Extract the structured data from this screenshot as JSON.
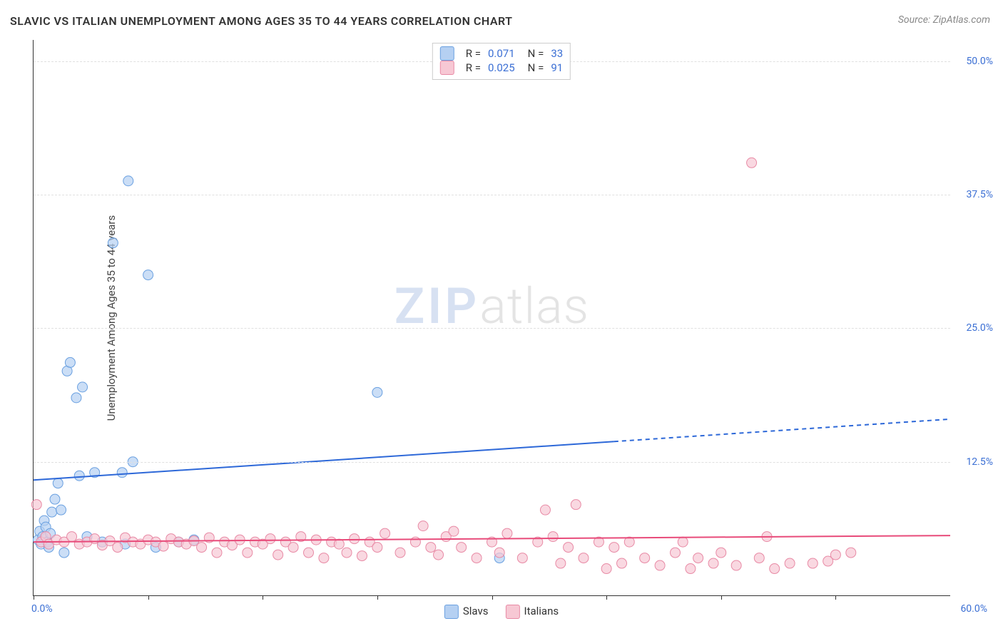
{
  "title": "SLAVIC VS ITALIAN UNEMPLOYMENT AMONG AGES 35 TO 44 YEARS CORRELATION CHART",
  "source": "Source: ZipAtlas.com",
  "watermark_zip": "ZIP",
  "watermark_atlas": "atlas",
  "y_axis_label": "Unemployment Among Ages 35 to 44 years",
  "chart": {
    "type": "scatter",
    "xlim": [
      0,
      60
    ],
    "ylim": [
      0,
      52
    ],
    "x_min_label": "0.0%",
    "x_max_label": "60.0%",
    "y_ticks": [
      12.5,
      25.0,
      37.5,
      50.0
    ],
    "y_tick_labels": [
      "12.5%",
      "25.0%",
      "37.5%",
      "50.0%"
    ],
    "x_tick_positions": [
      0,
      7.5,
      15,
      22.5,
      30,
      37.5,
      45,
      52.5
    ],
    "grid_color": "#e0e0e0",
    "background_color": "#ffffff",
    "series": [
      {
        "name": "Slavs",
        "label": "Slavs",
        "color_fill": "#b5d0f2",
        "color_stroke": "#6aa0e0",
        "marker_radius": 7,
        "r_value": "0.071",
        "n_value": "33",
        "trend": {
          "color": "#2d68d8",
          "width": 2,
          "x1": 0,
          "y1": 10.8,
          "x2_solid": 38,
          "y2_solid": 14.4,
          "x2_dash": 60,
          "y2_dash": 16.5
        },
        "points": [
          [
            0.3,
            5.2
          ],
          [
            0.4,
            6.0
          ],
          [
            0.5,
            4.8
          ],
          [
            0.6,
            5.5
          ],
          [
            0.7,
            7.0
          ],
          [
            0.8,
            6.4
          ],
          [
            0.9,
            5.0
          ],
          [
            1.0,
            4.5
          ],
          [
            1.1,
            5.8
          ],
          [
            1.2,
            7.8
          ],
          [
            1.4,
            9.0
          ],
          [
            1.6,
            10.5
          ],
          [
            1.8,
            8.0
          ],
          [
            2.0,
            4.0
          ],
          [
            2.2,
            21.0
          ],
          [
            2.4,
            21.8
          ],
          [
            2.8,
            18.5
          ],
          [
            3.0,
            11.2
          ],
          [
            3.2,
            19.5
          ],
          [
            3.5,
            5.5
          ],
          [
            4.0,
            11.5
          ],
          [
            4.5,
            5.0
          ],
          [
            5.2,
            33.0
          ],
          [
            5.8,
            11.5
          ],
          [
            6.0,
            4.8
          ],
          [
            6.2,
            38.8
          ],
          [
            6.5,
            12.5
          ],
          [
            7.5,
            30.0
          ],
          [
            8.0,
            4.5
          ],
          [
            9.5,
            5.0
          ],
          [
            10.5,
            5.2
          ],
          [
            22.5,
            19.0
          ],
          [
            30.5,
            3.5
          ]
        ]
      },
      {
        "name": "Italians",
        "label": "Italians",
        "color_fill": "#f7c8d4",
        "color_stroke": "#e88aa5",
        "marker_radius": 7,
        "r_value": "0.025",
        "n_value": "91",
        "trend": {
          "color": "#e84b7a",
          "width": 2,
          "x1": 0,
          "y1": 5.0,
          "x2_solid": 60,
          "y2_solid": 5.6,
          "x2_dash": 60,
          "y2_dash": 5.6
        },
        "points": [
          [
            0.2,
            8.5
          ],
          [
            0.5,
            5.0
          ],
          [
            0.8,
            5.5
          ],
          [
            1.0,
            4.8
          ],
          [
            1.5,
            5.2
          ],
          [
            2.0,
            5.0
          ],
          [
            2.5,
            5.5
          ],
          [
            3.0,
            4.8
          ],
          [
            3.5,
            5.0
          ],
          [
            4.0,
            5.3
          ],
          [
            4.5,
            4.7
          ],
          [
            5.0,
            5.1
          ],
          [
            5.5,
            4.5
          ],
          [
            6.0,
            5.4
          ],
          [
            6.5,
            5.0
          ],
          [
            7.0,
            4.8
          ],
          [
            7.5,
            5.2
          ],
          [
            8.0,
            5.0
          ],
          [
            8.5,
            4.6
          ],
          [
            9.0,
            5.3
          ],
          [
            9.5,
            5.0
          ],
          [
            10.0,
            4.8
          ],
          [
            10.5,
            5.1
          ],
          [
            11.0,
            4.5
          ],
          [
            11.5,
            5.4
          ],
          [
            12.0,
            4.0
          ],
          [
            12.5,
            5.0
          ],
          [
            13.0,
            4.7
          ],
          [
            13.5,
            5.2
          ],
          [
            14.0,
            4.0
          ],
          [
            14.5,
            5.0
          ],
          [
            15.0,
            4.8
          ],
          [
            15.5,
            5.3
          ],
          [
            16.0,
            3.8
          ],
          [
            16.5,
            5.0
          ],
          [
            17.0,
            4.5
          ],
          [
            17.5,
            5.5
          ],
          [
            18.0,
            4.0
          ],
          [
            18.5,
            5.2
          ],
          [
            19.0,
            3.5
          ],
          [
            19.5,
            5.0
          ],
          [
            20.0,
            4.8
          ],
          [
            20.5,
            4.0
          ],
          [
            21.0,
            5.3
          ],
          [
            21.5,
            3.7
          ],
          [
            22.0,
            5.0
          ],
          [
            22.5,
            4.5
          ],
          [
            23.0,
            5.8
          ],
          [
            24.0,
            4.0
          ],
          [
            25.0,
            5.0
          ],
          [
            25.5,
            6.5
          ],
          [
            26.0,
            4.5
          ],
          [
            26.5,
            3.8
          ],
          [
            27.0,
            5.5
          ],
          [
            27.5,
            6.0
          ],
          [
            28.0,
            4.5
          ],
          [
            29.0,
            3.5
          ],
          [
            30.0,
            5.0
          ],
          [
            30.5,
            4.0
          ],
          [
            31.0,
            5.8
          ],
          [
            32.0,
            3.5
          ],
          [
            33.0,
            5.0
          ],
          [
            33.5,
            8.0
          ],
          [
            34.0,
            5.5
          ],
          [
            34.5,
            3.0
          ],
          [
            35.0,
            4.5
          ],
          [
            35.5,
            8.5
          ],
          [
            36.0,
            3.5
          ],
          [
            37.0,
            5.0
          ],
          [
            37.5,
            2.5
          ],
          [
            38.0,
            4.5
          ],
          [
            38.5,
            3.0
          ],
          [
            39.0,
            5.0
          ],
          [
            40.0,
            3.5
          ],
          [
            41.0,
            2.8
          ],
          [
            42.0,
            4.0
          ],
          [
            42.5,
            5.0
          ],
          [
            43.0,
            2.5
          ],
          [
            43.5,
            3.5
          ],
          [
            44.5,
            3.0
          ],
          [
            45.0,
            4.0
          ],
          [
            46.0,
            2.8
          ],
          [
            47.5,
            3.5
          ],
          [
            48.0,
            5.5
          ],
          [
            48.5,
            2.5
          ],
          [
            49.5,
            3.0
          ],
          [
            51.0,
            3.0
          ],
          [
            52.0,
            3.2
          ],
          [
            52.5,
            3.8
          ],
          [
            53.5,
            4.0
          ],
          [
            47.0,
            40.5
          ]
        ]
      }
    ]
  },
  "top_legend": {
    "rows": [
      {
        "swatch_fill": "#b5d0f2",
        "swatch_stroke": "#6aa0e0",
        "r_label": "R  =",
        "r_value": "0.071",
        "n_label": "N  =",
        "n_value": "33"
      },
      {
        "swatch_fill": "#f7c8d4",
        "swatch_stroke": "#e88aa5",
        "r_label": "R  =",
        "r_value": "0.025",
        "n_label": "N  =",
        "n_value": "91"
      }
    ]
  },
  "bottom_legend": {
    "items": [
      {
        "swatch_fill": "#b5d0f2",
        "swatch_stroke": "#6aa0e0",
        "label": "Slavs"
      },
      {
        "swatch_fill": "#f7c8d4",
        "swatch_stroke": "#e88aa5",
        "label": "Italians"
      }
    ]
  }
}
